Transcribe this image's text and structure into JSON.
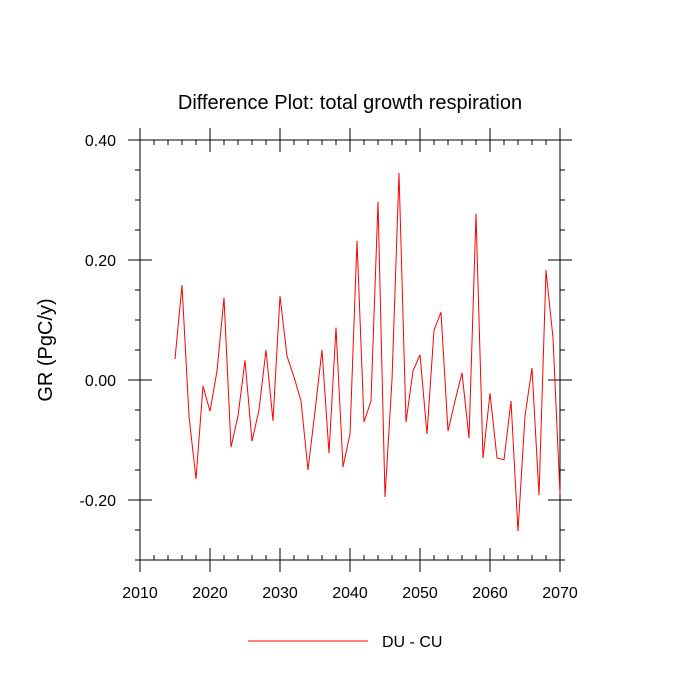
{
  "chart_data": {
    "type": "line",
    "title": "Difference Plot: total growth respiration",
    "xlabel": "",
    "ylabel": "GR  (PgC/y)",
    "xlim": [
      2010,
      2070
    ],
    "ylim": [
      -0.3,
      0.4
    ],
    "x_ticks": [
      2010,
      2020,
      2030,
      2040,
      2050,
      2060,
      2070
    ],
    "x_tick_labels": [
      "2010",
      "2020",
      "2030",
      "2040",
      "2050",
      "2060",
      "2070"
    ],
    "y_ticks": [
      -0.2,
      0.0,
      0.2,
      0.4
    ],
    "y_tick_labels": [
      "-0.20",
      "0.00",
      "0.20",
      "0.40"
    ],
    "y_minor_step": 0.05,
    "x_minor_step": 2,
    "grid": false,
    "legend_position": "bottom-center",
    "series": [
      {
        "name": "DU - CU",
        "color": "#ff0000",
        "x": [
          2015,
          2016,
          2017,
          2018,
          2019,
          2020,
          2021,
          2022,
          2023,
          2024,
          2025,
          2026,
          2027,
          2028,
          2029,
          2030,
          2031,
          2032,
          2033,
          2034,
          2035,
          2036,
          2037,
          2038,
          2039,
          2040,
          2041,
          2042,
          2043,
          2044,
          2045,
          2046,
          2047,
          2048,
          2049,
          2050,
          2051,
          2052,
          2053,
          2054,
          2055,
          2056,
          2057,
          2058,
          2059,
          2060,
          2061,
          2062,
          2063,
          2064,
          2065,
          2066,
          2067,
          2068,
          2069,
          2070
        ],
        "values": [
          0.035,
          0.158,
          -0.06,
          -0.165,
          -0.01,
          -0.052,
          0.015,
          0.137,
          -0.112,
          -0.06,
          0.033,
          -0.102,
          -0.05,
          0.05,
          -0.068,
          0.14,
          0.04,
          0.005,
          -0.035,
          -0.15,
          -0.052,
          0.05,
          -0.122,
          0.087,
          -0.145,
          -0.09,
          0.232,
          -0.07,
          -0.035,
          0.297,
          -0.195,
          0.0,
          0.345,
          -0.07,
          0.015,
          0.042,
          -0.09,
          0.083,
          0.113,
          -0.085,
          -0.035,
          0.012,
          -0.097,
          0.277,
          -0.13,
          -0.022,
          -0.13,
          -0.133,
          -0.035,
          -0.252,
          -0.06,
          0.02,
          -0.192,
          0.183,
          0.07,
          -0.19
        ]
      }
    ]
  }
}
